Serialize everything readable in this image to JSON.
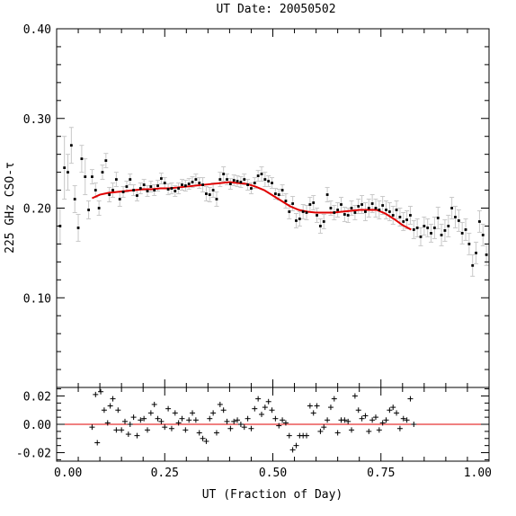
{
  "chart_data": [
    {
      "type": "scatter",
      "title": "UT Date: 20050502",
      "ylabel": "225 GHz CSO-τ",
      "xlabel": "",
      "xlim": [
        0.0,
        1.0
      ],
      "ylim": [
        0.0,
        0.4
      ],
      "yticks": [
        "0.10",
        "0.20",
        "0.30",
        "0.40"
      ],
      "xticks": [],
      "grid": false,
      "colors": {
        "points": "#000000",
        "errorbars": "#c8c8c8",
        "fit": "#e00000"
      },
      "series": [
        {
          "x": [
            0.008,
            0.018,
            0.026,
            0.034,
            0.042,
            0.05,
            0.058,
            0.066,
            0.074,
            0.082,
            0.09,
            0.098,
            0.106,
            0.114,
            0.122,
            0.13,
            0.138,
            0.146,
            0.154,
            0.162,
            0.17,
            0.178,
            0.186,
            0.194,
            0.202,
            0.21,
            0.218,
            0.226,
            0.234,
            0.242,
            0.25,
            0.258,
            0.266,
            0.274,
            0.282,
            0.29,
            0.298,
            0.306,
            0.314,
            0.322,
            0.33,
            0.338,
            0.346,
            0.354,
            0.362,
            0.37,
            0.378,
            0.386,
            0.394,
            0.402,
            0.41,
            0.418,
            0.426,
            0.434,
            0.442,
            0.45,
            0.458,
            0.466,
            0.474,
            0.482,
            0.49,
            0.498,
            0.506,
            0.514,
            0.522,
            0.53,
            0.538,
            0.546,
            0.554,
            0.562,
            0.57,
            0.578,
            0.586,
            0.594,
            0.602,
            0.61,
            0.618,
            0.626,
            0.634,
            0.642,
            0.65,
            0.658,
            0.666,
            0.674,
            0.682,
            0.69,
            0.698,
            0.706,
            0.714,
            0.722,
            0.73,
            0.738,
            0.746,
            0.754,
            0.762,
            0.77,
            0.778,
            0.786,
            0.794,
            0.802,
            0.81,
            0.818,
            0.826,
            0.834,
            0.842,
            0.85,
            0.858,
            0.866,
            0.874,
            0.882,
            0.89,
            0.898,
            0.906,
            0.914,
            0.922,
            0.93,
            0.938,
            0.946,
            0.954,
            0.962,
            0.97,
            0.978,
            0.986,
            0.994
          ],
          "y": [
            0.18,
            0.245,
            0.24,
            0.27,
            0.21,
            0.178,
            0.255,
            0.235,
            0.198,
            0.235,
            0.22,
            0.2,
            0.24,
            0.253,
            0.215,
            0.22,
            0.232,
            0.21,
            0.218,
            0.224,
            0.232,
            0.22,
            0.214,
            0.222,
            0.226,
            0.219,
            0.224,
            0.22,
            0.225,
            0.233,
            0.228,
            0.221,
            0.222,
            0.219,
            0.222,
            0.226,
            0.225,
            0.227,
            0.229,
            0.232,
            0.228,
            0.226,
            0.216,
            0.215,
            0.22,
            0.21,
            0.232,
            0.238,
            0.232,
            0.227,
            0.231,
            0.23,
            0.229,
            0.232,
            0.226,
            0.222,
            0.228,
            0.236,
            0.238,
            0.232,
            0.23,
            0.228,
            0.216,
            0.215,
            0.22,
            0.208,
            0.196,
            0.205,
            0.186,
            0.188,
            0.196,
            0.195,
            0.204,
            0.206,
            0.192,
            0.18,
            0.185,
            0.215,
            0.2,
            0.195,
            0.198,
            0.204,
            0.193,
            0.192,
            0.2,
            0.195,
            0.202,
            0.204,
            0.196,
            0.2,
            0.205,
            0.2,
            0.198,
            0.203,
            0.198,
            0.196,
            0.192,
            0.198,
            0.19,
            0.185,
            0.187,
            0.192,
            0.176,
            0.178,
            0.168,
            0.18,
            0.178,
            0.172,
            0.178,
            0.189,
            0.17,
            0.175,
            0.18,
            0.2,
            0.19,
            0.186,
            0.172,
            0.176,
            0.16,
            0.136,
            0.15,
            0.185,
            0.17,
            0.148
          ],
          "err": [
            0.02,
            0.035,
            0.02,
            0.02,
            0.015,
            0.015,
            0.015,
            0.02,
            0.01,
            0.008,
            0.008,
            0.008,
            0.008,
            0.008,
            0.008,
            0.008,
            0.008,
            0.008,
            0.006,
            0.006,
            0.006,
            0.006,
            0.006,
            0.006,
            0.006,
            0.006,
            0.006,
            0.006,
            0.006,
            0.006,
            0.006,
            0.006,
            0.006,
            0.006,
            0.006,
            0.006,
            0.006,
            0.006,
            0.006,
            0.006,
            0.006,
            0.008,
            0.008,
            0.008,
            0.008,
            0.008,
            0.008,
            0.008,
            0.006,
            0.006,
            0.006,
            0.006,
            0.006,
            0.006,
            0.006,
            0.006,
            0.006,
            0.006,
            0.008,
            0.008,
            0.006,
            0.006,
            0.006,
            0.006,
            0.006,
            0.008,
            0.008,
            0.008,
            0.008,
            0.008,
            0.008,
            0.008,
            0.008,
            0.008,
            0.008,
            0.008,
            0.008,
            0.008,
            0.008,
            0.008,
            0.008,
            0.008,
            0.008,
            0.008,
            0.008,
            0.008,
            0.008,
            0.01,
            0.01,
            0.01,
            0.01,
            0.01,
            0.01,
            0.01,
            0.01,
            0.01,
            0.01,
            0.01,
            0.01,
            0.01,
            0.01,
            0.01,
            0.01,
            0.01,
            0.01,
            0.01,
            0.01,
            0.01,
            0.012,
            0.012,
            0.012,
            0.012,
            0.012,
            0.012,
            0.012,
            0.012,
            0.012,
            0.012,
            0.012,
            0.012,
            0.012,
            0.012,
            0.012,
            0.012
          ]
        }
      ],
      "fit": {
        "x": [
          0.082,
          0.1,
          0.12,
          0.14,
          0.16,
          0.18,
          0.2,
          0.22,
          0.24,
          0.26,
          0.28,
          0.3,
          0.32,
          0.34,
          0.36,
          0.38,
          0.4,
          0.42,
          0.44,
          0.46,
          0.48,
          0.5,
          0.52,
          0.54,
          0.56,
          0.58,
          0.6,
          0.62,
          0.64,
          0.66,
          0.68,
          0.7,
          0.72,
          0.74,
          0.76,
          0.78,
          0.8,
          0.82
        ],
        "y": [
          0.211,
          0.215,
          0.217,
          0.218,
          0.219,
          0.22,
          0.221,
          0.221,
          0.222,
          0.222,
          0.223,
          0.224,
          0.225,
          0.226,
          0.227,
          0.228,
          0.229,
          0.228,
          0.227,
          0.224,
          0.22,
          0.214,
          0.208,
          0.202,
          0.198,
          0.196,
          0.195,
          0.195,
          0.195,
          0.196,
          0.197,
          0.198,
          0.198,
          0.198,
          0.194,
          0.188,
          0.181,
          0.176
        ]
      }
    },
    {
      "type": "scatter",
      "title": "",
      "xlabel": "UT (Fraction of Day)",
      "ylabel": "",
      "xlim": [
        0.0,
        1.0
      ],
      "ylim": [
        -0.026,
        0.026
      ],
      "yticks": [
        "-0.02",
        "0.00",
        "0.02"
      ],
      "xticks": [
        "0.00",
        "0.25",
        "0.50",
        "0.75",
        "1.00"
      ],
      "grid": false,
      "zero_line_color": "#e00000",
      "residuals": {
        "x": [
          0.082,
          0.09,
          0.094,
          0.102,
          0.11,
          0.118,
          0.124,
          0.13,
          0.138,
          0.142,
          0.15,
          0.158,
          0.166,
          0.17,
          0.178,
          0.186,
          0.194,
          0.202,
          0.21,
          0.218,
          0.226,
          0.234,
          0.242,
          0.25,
          0.258,
          0.266,
          0.274,
          0.282,
          0.29,
          0.298,
          0.306,
          0.314,
          0.322,
          0.33,
          0.338,
          0.346,
          0.354,
          0.362,
          0.37,
          0.378,
          0.386,
          0.394,
          0.402,
          0.41,
          0.418,
          0.426,
          0.434,
          0.442,
          0.45,
          0.458,
          0.466,
          0.474,
          0.482,
          0.49,
          0.498,
          0.506,
          0.514,
          0.522,
          0.53,
          0.538,
          0.546,
          0.554,
          0.562,
          0.57,
          0.578,
          0.586,
          0.594,
          0.602,
          0.61,
          0.618,
          0.626,
          0.634,
          0.642,
          0.65,
          0.658,
          0.666,
          0.674,
          0.682,
          0.69,
          0.698,
          0.706,
          0.714,
          0.722,
          0.73,
          0.738,
          0.746,
          0.754,
          0.762,
          0.77,
          0.778,
          0.786,
          0.794,
          0.802,
          0.81,
          0.818,
          0.826
        ],
        "y": [
          -0.002,
          0.021,
          -0.013,
          0.023,
          0.01,
          0.001,
          0.013,
          0.018,
          -0.004,
          0.01,
          -0.004,
          0.002,
          -0.007,
          0.0,
          0.005,
          -0.008,
          0.003,
          0.004,
          -0.004,
          0.008,
          0.014,
          0.004,
          0.002,
          -0.002,
          0.011,
          -0.003,
          0.008,
          0.001,
          0.004,
          -0.004,
          0.003,
          0.008,
          0.003,
          -0.006,
          -0.01,
          -0.012,
          0.004,
          0.008,
          -0.006,
          0.014,
          0.01,
          0.002,
          -0.003,
          0.002,
          0.003,
          0.0,
          -0.002,
          0.004,
          -0.003,
          0.011,
          0.018,
          0.007,
          0.012,
          0.016,
          0.01,
          0.004,
          -0.001,
          0.003,
          0.001,
          -0.008,
          -0.018,
          -0.015,
          -0.008,
          -0.008,
          -0.008,
          0.013,
          0.008,
          0.013,
          -0.005,
          -0.002,
          0.003,
          0.012,
          0.018,
          -0.006,
          0.003,
          0.003,
          0.002,
          -0.004,
          0.02,
          0.01,
          0.004,
          0.006,
          -0.005,
          0.003,
          0.005,
          -0.004,
          0.001,
          0.003,
          0.01,
          0.012,
          0.008,
          -0.003,
          0.004,
          0.003,
          0.018,
          0.0
        ]
      }
    }
  ]
}
